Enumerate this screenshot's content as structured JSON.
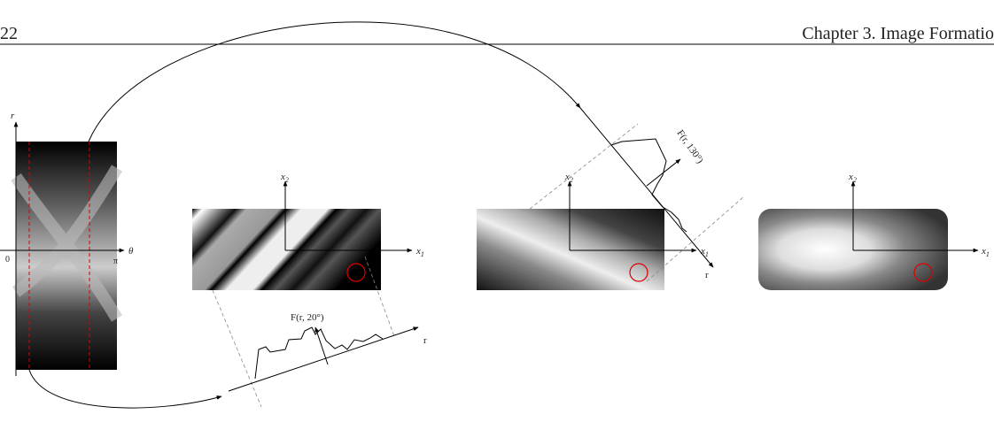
{
  "header": {
    "page_number": "22",
    "chapter": "Chapter 3. Image Formatio"
  },
  "figure": {
    "sinogram": {
      "r_label": "r",
      "theta_label": "θ",
      "origin_label": "0",
      "pi_label": "π"
    },
    "panels": [
      {
        "x2": {
          "base": "x",
          "sub": "2"
        },
        "x1": {
          "base": "x",
          "sub": "1"
        },
        "projection": "F(r, 20°)",
        "r_label": "r"
      },
      {
        "x2": {
          "base": "x",
          "sub": "2"
        },
        "x1": {
          "base": "x",
          "sub": "1"
        },
        "projection": "F(r, 130°)",
        "r_label": "r"
      },
      {
        "x2": {
          "base": "x",
          "sub": "2"
        },
        "x1": {
          "base": "x",
          "sub": "1"
        }
      }
    ]
  }
}
